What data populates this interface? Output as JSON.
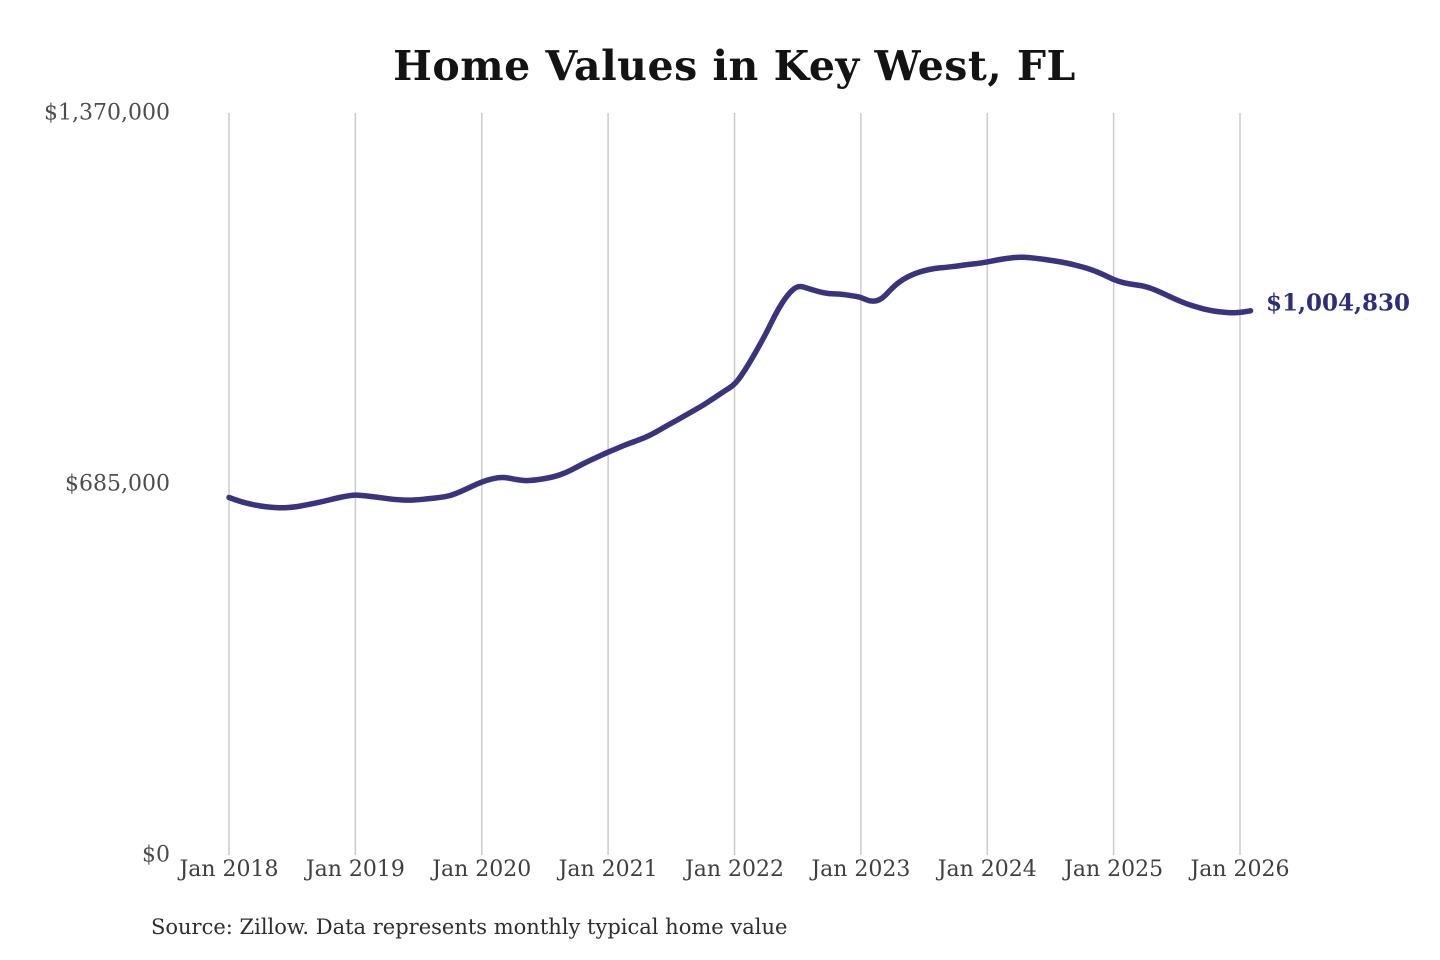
{
  "page": {
    "background": "#ffffff"
  },
  "chart_data": {
    "type": "line",
    "title": "Home Values in Key West, FL",
    "source_note": "Source: Zillow. Data represents monthly typical home value",
    "end_label": "$1,004,830",
    "latest_value": 1004830,
    "xlabel": "",
    "ylabel": "",
    "ylim": [
      0,
      1370000
    ],
    "grid": "vertical-only",
    "legend": "none",
    "x_tick_labels": [
      "Jan 2018",
      "Jan 2019",
      "Jan 2020",
      "Jan 2021",
      "Jan 2022",
      "Jan 2023",
      "Jan 2024",
      "Jan 2025",
      "Jan 2026"
    ],
    "y_ticks": [
      {
        "label": "$0",
        "value": 0
      },
      {
        "label": "$685,000",
        "value": 685000
      },
      {
        "label": "$1,370,000",
        "value": 1370000
      }
    ],
    "x_start": "2018-01",
    "x_freq": "monthly",
    "n_points": 98,
    "series": [
      {
        "name": "Monthly typical home value",
        "color": "#3a3383",
        "values": [
          660000,
          653000,
          648000,
          644000,
          642000,
          641000,
          642000,
          645000,
          649000,
          653000,
          658000,
          662000,
          665000,
          663000,
          661000,
          658000,
          656000,
          655000,
          656000,
          658000,
          660000,
          663000,
          671000,
          680000,
          689000,
          695000,
          698000,
          694000,
          691000,
          692000,
          695000,
          699000,
          706000,
          716000,
          726000,
          735000,
          744000,
          752000,
          760000,
          767000,
          775000,
          786000,
          797000,
          808000,
          819000,
          830000,
          843000,
          856000,
          868000,
          895000,
          928000,
          963000,
          1003000,
          1034000,
          1052000,
          1046000,
          1040000,
          1036000,
          1036000,
          1033000,
          1030000,
          1021000,
          1026000,
          1048000,
          1063000,
          1073000,
          1079000,
          1083000,
          1085000,
          1087000,
          1090000,
          1092000,
          1095000,
          1099000,
          1102000,
          1104000,
          1103000,
          1101000,
          1098000,
          1095000,
          1091000,
          1086000,
          1080000,
          1072000,
          1062000,
          1056000,
          1053000,
          1050000,
          1043000,
          1034000,
          1025000,
          1017000,
          1011000,
          1006000,
          1003000,
          1001000,
          1001500,
          1004830
        ]
      }
    ],
    "colors": {
      "line": "#3a3383",
      "end_label": "#2f2c80",
      "gridline": "#cbcbcb",
      "axis_text": "#4c4c4c",
      "title_text": "#131313",
      "source_text": "#2e2e2e"
    }
  }
}
